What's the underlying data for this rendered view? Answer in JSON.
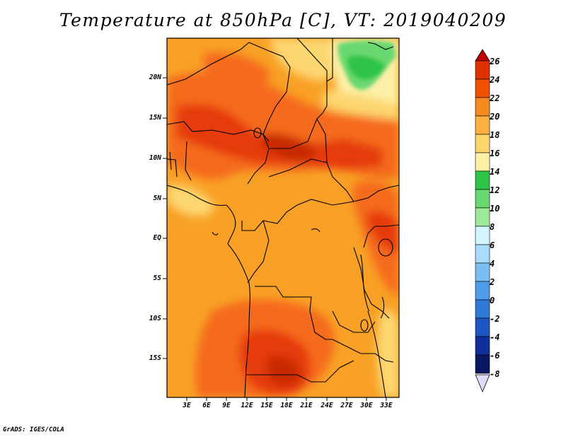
{
  "title": "Temperature at 850hPa [C], VT: 2019040209",
  "credit": "GrADS: IGES/COLA",
  "axes": {
    "lat_labels": [
      "20N",
      "15N",
      "10N",
      "5N",
      "EQ",
      "5S",
      "10S",
      "15S"
    ],
    "lon_labels": [
      "3E",
      "6E",
      "9E",
      "12E",
      "15E",
      "18E",
      "21E",
      "24E",
      "27E",
      "30E",
      "33E"
    ]
  },
  "colorbar": {
    "levels": [
      "26",
      "24",
      "22",
      "20",
      "18",
      "16",
      "14",
      "12",
      "10",
      "8",
      "6",
      "4",
      "2",
      "0",
      "-2",
      "-4",
      "-6",
      "-8"
    ],
    "colors": [
      "#c00000",
      "#e03000",
      "#f05000",
      "#f58a1e",
      "#fbb040",
      "#fcd66a",
      "#fdf0a6",
      "#2ec44a",
      "#6ad870",
      "#9ee89a",
      "#d4f4ff",
      "#a9dbfb",
      "#7bbff2",
      "#4f9de8",
      "#2f78d8",
      "#1f55c0",
      "#0e2f9c",
      "#081860"
    ]
  },
  "legend_colors": {
    "very_warm": "#e53a0c",
    "warm": "#f56a1a",
    "mild": "#f8a126",
    "cool": "#fcd670",
    "green": "#46c85a"
  }
}
